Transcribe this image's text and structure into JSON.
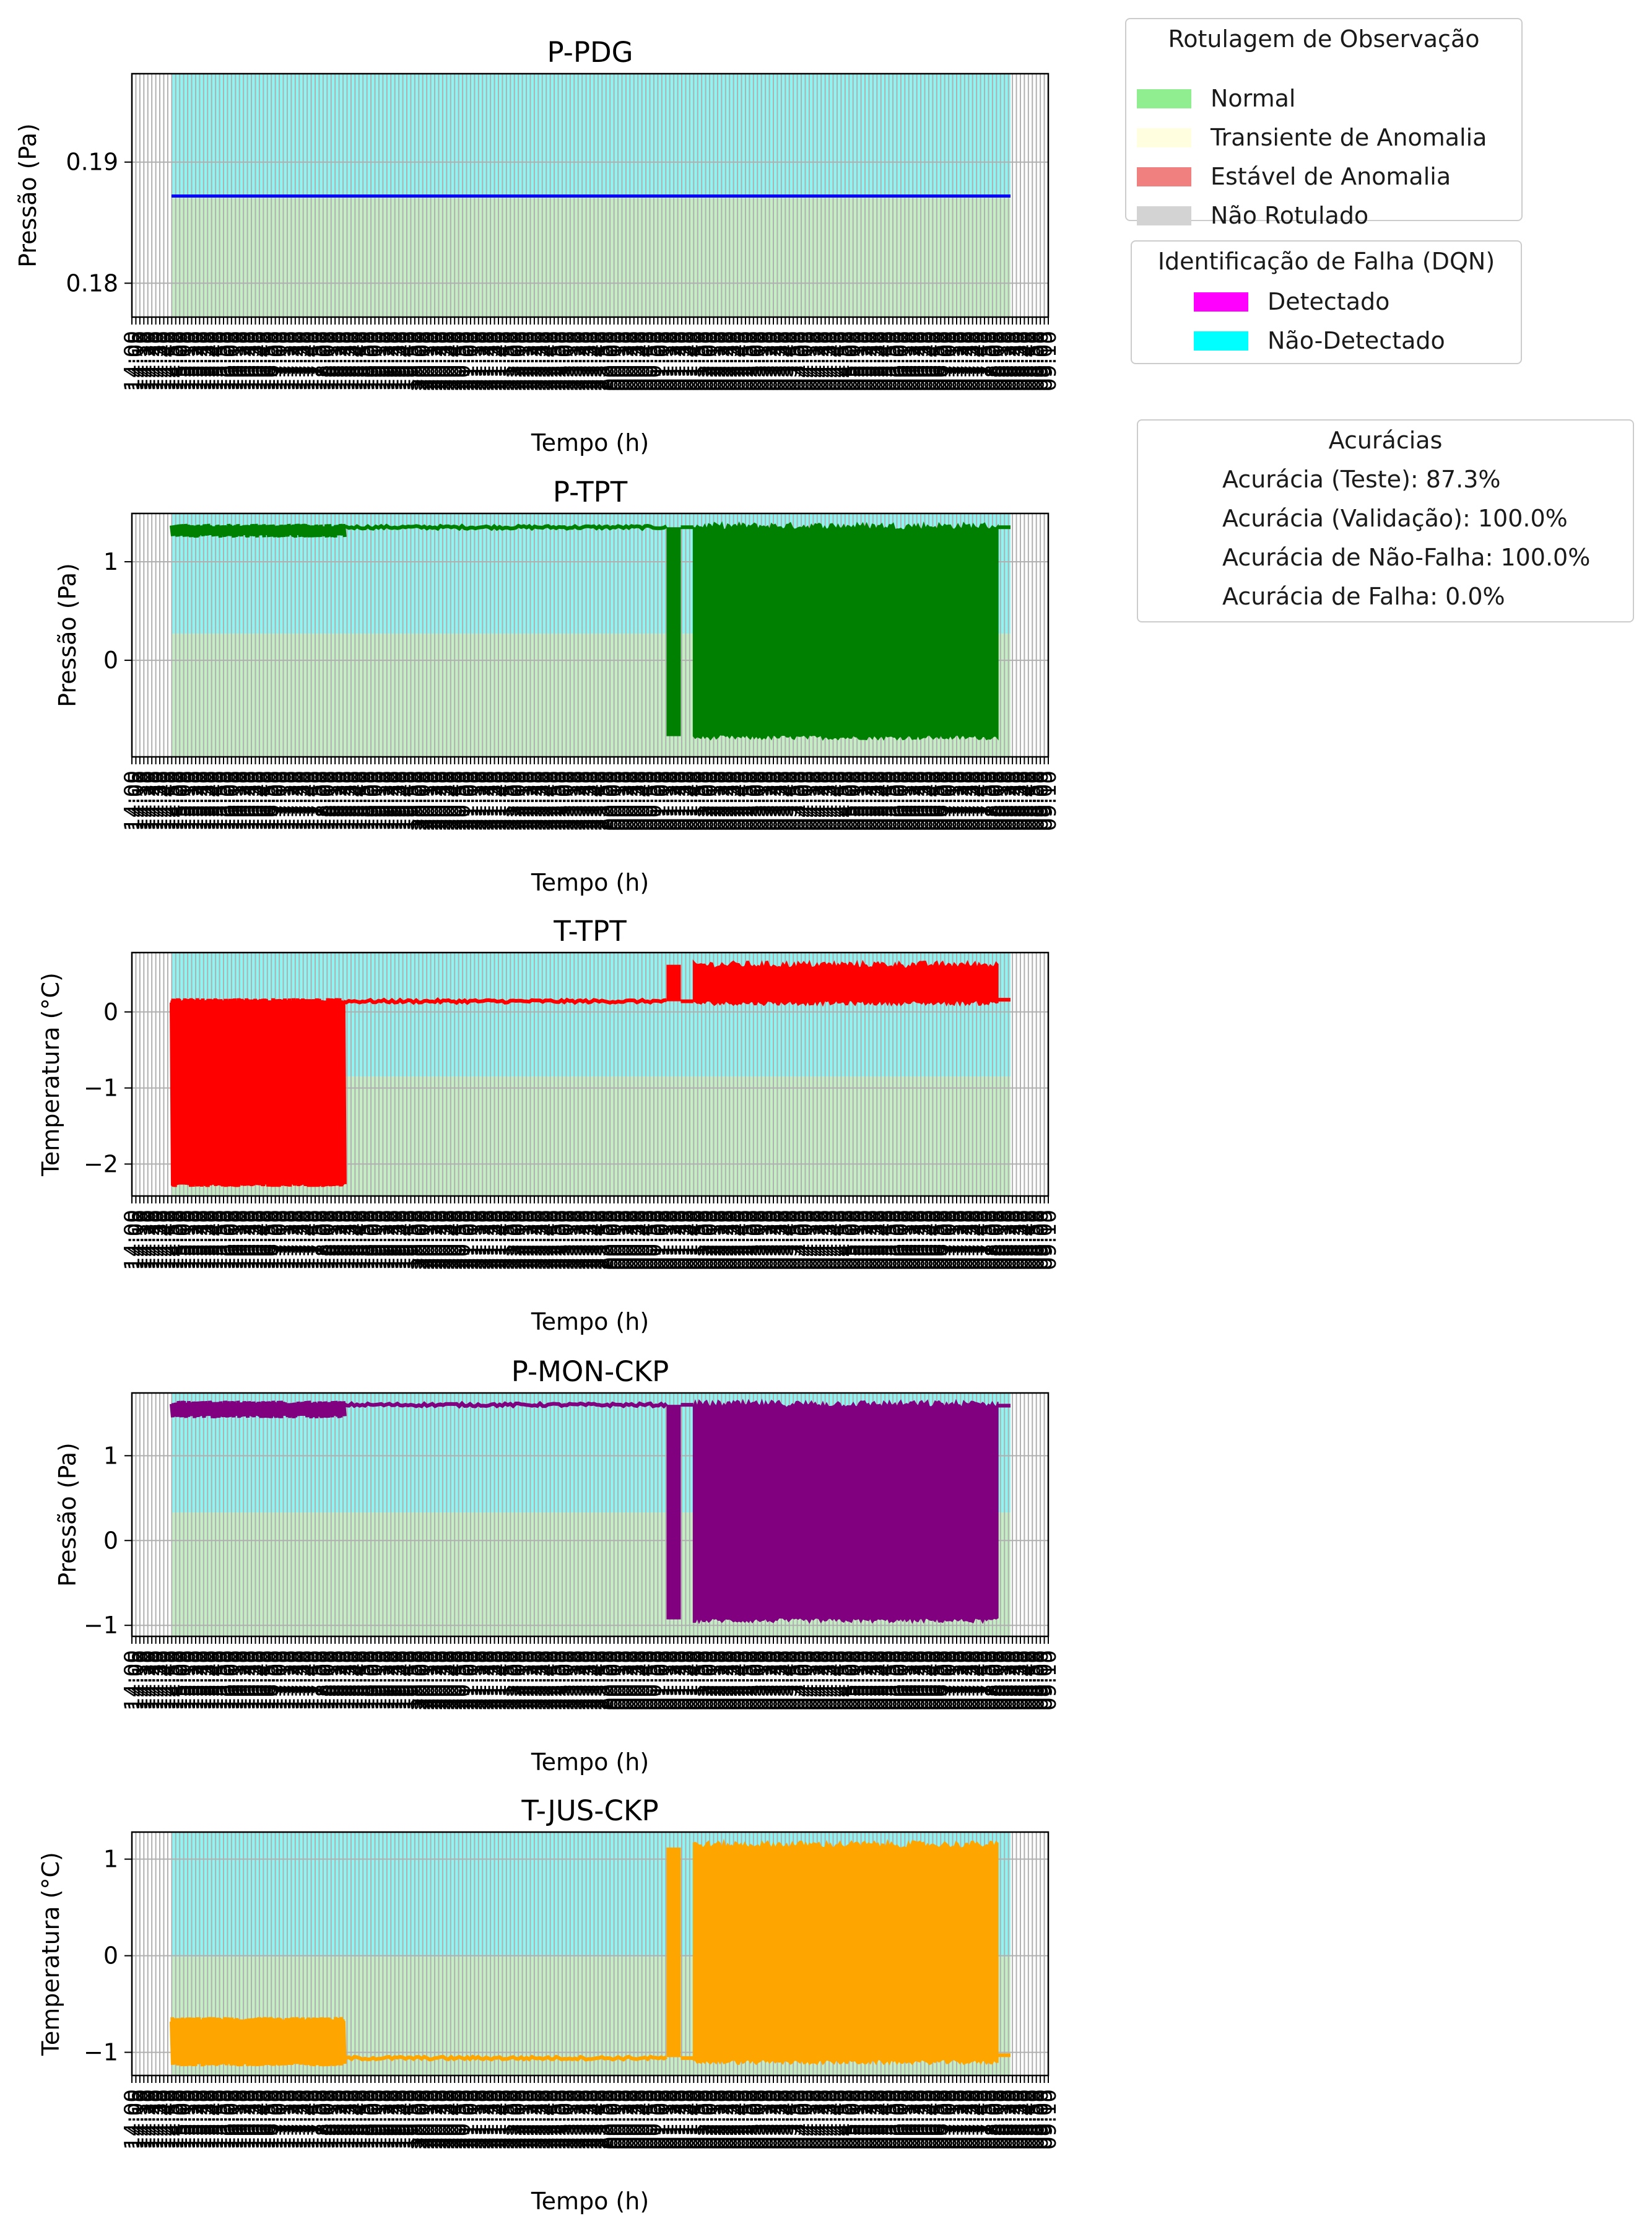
{
  "chart_data": {
    "type": "multi-panel-timeseries",
    "x_label": "Tempo (h)",
    "x_tick_labels": [
      "14:00",
      "14:05",
      "14:10",
      "14:15",
      "14:20",
      "14:25",
      "14:30",
      "14:35",
      "14:40",
      "14:45",
      "14:50",
      "14:55",
      "15:00",
      "15:05",
      "15:10",
      "15:15",
      "15:20",
      "15:25",
      "15:30",
      "15:35",
      "15:40",
      "15:45",
      "15:50",
      "15:55",
      "16:00",
      "16:05",
      "16:10",
      "16:15",
      "16:20",
      "16:25",
      "16:30",
      "16:35",
      "16:40",
      "16:45",
      "16:50",
      "16:55",
      "17:00",
      "17:05",
      "17:10",
      "17:15",
      "17:20",
      "17:25",
      "17:30",
      "17:35",
      "17:40",
      "17:45",
      "17:50",
      "17:55",
      "18:00",
      "18:05",
      "18:10",
      "18:15",
      "18:20",
      "18:25",
      "18:30",
      "18:35",
      "18:40",
      "18:45",
      "18:50",
      "18:55",
      "19:00",
      "19:05",
      "19:10",
      "19:15",
      "19:20",
      "19:25",
      "19:30",
      "19:35",
      "19:40",
      "19:45",
      "19:50",
      "19:55",
      "20:00",
      "20:05",
      "20:10",
      "20:15",
      "20:20",
      "20:25",
      "20:30",
      "20:35",
      "20:40",
      "20:45",
      "20:50",
      "20:55",
      "21:00",
      "21:05",
      "21:10",
      "21:15",
      "21:20",
      "21:25",
      "21:30",
      "21:35",
      "21:40",
      "21:45",
      "21:50",
      "21:55",
      "22:00",
      "22:05",
      "22:10",
      "22:15",
      "22:20",
      "22:25",
      "22:30",
      "22:35",
      "22:40",
      "22:45",
      "22:50",
      "22:55",
      "23:00",
      "23:05",
      "23:10",
      "23:15",
      "23:20",
      "23:25",
      "23:30",
      "23:35",
      "23:40",
      "23:45",
      "23:50",
      "23:55",
      "00:00",
      "00:05",
      "00:10",
      "00:15",
      "00:20",
      "00:25",
      "00:30",
      "00:35",
      "00:40",
      "00:45",
      "00:50",
      "00:55",
      "01:00",
      "01:05",
      "01:10",
      "01:15",
      "01:20",
      "01:25",
      "01:30",
      "01:35",
      "01:40",
      "01:45",
      "01:50",
      "01:55",
      "02:00",
      "02:05",
      "02:10",
      "02:15",
      "02:20",
      "02:25",
      "02:30",
      "02:35",
      "02:40",
      "02:45",
      "02:50",
      "02:55",
      "03:00",
      "03:05",
      "03:10",
      "03:15",
      "03:20",
      "03:25",
      "03:30",
      "03:35",
      "03:40",
      "03:45",
      "03:50",
      "03:55",
      "04:00",
      "04:05",
      "04:10",
      "04:15",
      "04:20",
      "04:25",
      "04:30",
      "04:35",
      "04:40",
      "04:45",
      "04:50",
      "04:55",
      "05:00",
      "05:05",
      "05:10",
      "05:15",
      "05:20",
      "05:25",
      "05:30",
      "05:35",
      "05:40",
      "05:45",
      "05:50",
      "05:55",
      "06:00",
      "06:05",
      "06:10",
      "06:15",
      "06:20",
      "06:25",
      "06:30",
      "06:35",
      "06:40",
      "06:45",
      "06:50",
      "06:55",
      "07:00",
      "07:05",
      "07:10",
      "07:15",
      "07:20",
      "07:25",
      "07:30",
      "07:35",
      "07:40",
      "07:45",
      "07:50",
      "07:55",
      "08:00",
      "08:05",
      "08:10",
      "08:15",
      "08:20",
      "08:25",
      "08:30",
      "08:35",
      "08:40",
      "08:45",
      "08:50",
      "08:55",
      "09:00",
      "09:05",
      "09:10"
    ],
    "panels": [
      {
        "title": "P-PDG",
        "ylabel": "Pressão (Pa)",
        "ylim": [
          0.1772,
          0.1973
        ],
        "yticks": [
          0.18,
          0.19
        ],
        "ytick_labels": [
          "0.18",
          "0.19"
        ],
        "band_split": 0.1871,
        "color": "#0000ff",
        "kind": "flat",
        "value": 0.1872
      },
      {
        "title": "P-TPT",
        "ylabel": "Pressão (Pa)",
        "ylim": [
          -0.98,
          1.49
        ],
        "yticks": [
          0,
          1
        ],
        "ytick_labels": [
          "0",
          "1"
        ],
        "band_split": 0.27,
        "color": "#008000",
        "kind": "block",
        "early": [
          1.36,
          1.27
        ],
        "mid": 1.35,
        "spike": [
          1.35,
          -0.77
        ],
        "block": [
          1.36,
          -0.78
        ],
        "end_value": 1.35
      },
      {
        "title": "T-TPT",
        "ylabel": "Temperatura (°C)",
        "ylim": [
          -2.42,
          0.78
        ],
        "yticks": [
          -2,
          -1,
          0
        ],
        "ytick_labels": [
          "−2",
          "−1",
          "0"
        ],
        "band_split": -0.85,
        "color": "#ff0000",
        "kind": "block",
        "early": [
          0.15,
          -2.27
        ],
        "mid": 0.14,
        "spike": [
          0.62,
          0.14
        ],
        "block": [
          0.62,
          0.12
        ],
        "end_value": 0.16
      },
      {
        "title": "P-MON-CKP",
        "ylabel": "Pressão (Pa)",
        "ylim": [
          -1.13,
          1.74
        ],
        "yticks": [
          -1,
          0,
          1
        ],
        "ytick_labels": [
          "−1",
          "0",
          "1"
        ],
        "band_split": 0.33,
        "color": "#800080",
        "kind": "block",
        "early": [
          1.62,
          1.47
        ],
        "mid": 1.6,
        "spike": [
          1.6,
          -0.93
        ],
        "block": [
          1.61,
          -0.94
        ],
        "end_value": 1.59
      },
      {
        "title": "T-JUS-CKP",
        "ylabel": "Temperatura (°C)",
        "ylim": [
          -1.24,
          1.28
        ],
        "yticks": [
          -1,
          0,
          1
        ],
        "ytick_labels": [
          "−1",
          "0",
          "1"
        ],
        "band_split": -0.01,
        "color": "#ffa500",
        "kind": "block",
        "early": [
          -0.66,
          -1.12
        ],
        "mid": -1.06,
        "spike": [
          1.12,
          -1.05
        ],
        "block": [
          1.15,
          -1.1
        ],
        "end_value": -1.03
      }
    ]
  },
  "legends": {
    "labeling": {
      "title": "Rotulagem de Observação",
      "entries": [
        {
          "label": "Normal",
          "color": "#90ee90"
        },
        {
          "label": "Transiente de Anomalia",
          "color": "#ffffe0"
        },
        {
          "label": "Estável de Anomalia",
          "color": "#f08080"
        },
        {
          "label": "Não Rotulado",
          "color": "#d3d3d3"
        }
      ]
    },
    "fault": {
      "title": "Identificação de Falha (DQN)",
      "entries": [
        {
          "label": "Detectado",
          "color": "#ff00ff"
        },
        {
          "label": "Não-Detectado",
          "color": "#00ffff"
        }
      ]
    },
    "accuracy": {
      "title": "Acurácias",
      "lines": [
        "Acurácia (Teste): 87.3%",
        "Acurácia (Validação): 100.0%",
        "Acurácia de Não-Falha: 100.0%",
        "Acurácia de Falha: 0.0%"
      ]
    }
  }
}
